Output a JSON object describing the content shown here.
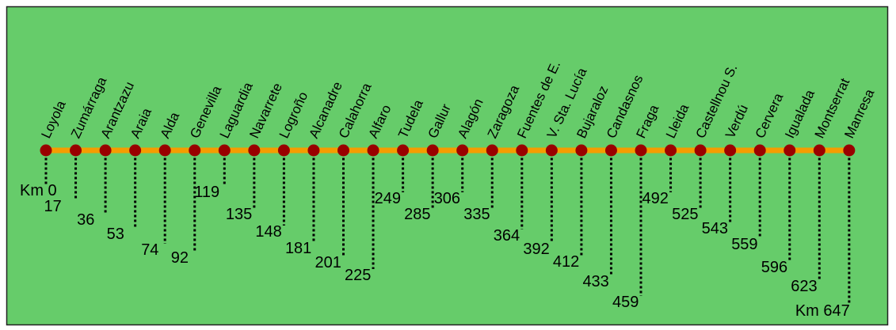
{
  "colors": {
    "background": "#66cc6a",
    "line": "#f59d00",
    "stop": "#990000",
    "connector": "#000000",
    "border": "#222222"
  },
  "route": {
    "stations": [
      {
        "name": "Loyola",
        "km": "Km 0"
      },
      {
        "name": "Zumárraga",
        "km": "17"
      },
      {
        "name": "Arantzazu",
        "km": "36"
      },
      {
        "name": "Araia",
        "km": "53"
      },
      {
        "name": "Alda",
        "km": "74"
      },
      {
        "name": "Genevilla",
        "km": "92"
      },
      {
        "name": "Laguardia",
        "km": "119"
      },
      {
        "name": "Navarrete",
        "km": "135"
      },
      {
        "name": "Logroño",
        "km": "148"
      },
      {
        "name": "Alcanadre",
        "km": "181"
      },
      {
        "name": "Calahorra",
        "km": "201"
      },
      {
        "name": "Alfaro",
        "km": "225"
      },
      {
        "name": "Tudela",
        "km": "249"
      },
      {
        "name": "Gallur",
        "km": "285"
      },
      {
        "name": "Alagón",
        "km": "306"
      },
      {
        "name": "Zaragoza",
        "km": "335"
      },
      {
        "name": "Fuentes de E.",
        "km": "364"
      },
      {
        "name": "V. Sta. Lucía",
        "km": "392"
      },
      {
        "name": "Bujaraloz",
        "km": "412"
      },
      {
        "name": "Candasnos",
        "km": "433"
      },
      {
        "name": "Fraga",
        "km": "459"
      },
      {
        "name": "Lleida",
        "km": "492"
      },
      {
        "name": "Castellnou S.",
        "km": "525"
      },
      {
        "name": "Verdú",
        "km": "543"
      },
      {
        "name": "Cervera",
        "km": "559"
      },
      {
        "name": "Igualada",
        "km": "596"
      },
      {
        "name": "Montserrat",
        "km": "623"
      },
      {
        "name": "Manresa",
        "km": "Km 647"
      }
    ]
  }
}
